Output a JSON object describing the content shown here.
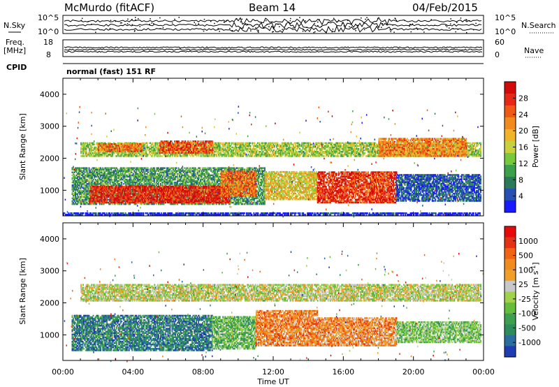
{
  "header": {
    "station": "McMurdo (fitACF)",
    "beam": "Beam 14",
    "date": "04/Feb/2015"
  },
  "top_panels": {
    "nsky_label": "N.Sky",
    "nsearch_label": "N.Search",
    "nsky_ticks": [
      "10^5",
      "10^0"
    ],
    "nsearch_ticks": [
      "10^5",
      "10^0"
    ],
    "freq_label_1": "Freq.",
    "freq_label_2": "[MHz]",
    "freq_ticks": [
      "18",
      "8"
    ],
    "nave_label": "Nave",
    "nave_ticks": [
      "60",
      "0"
    ],
    "cpid_label": "CPID",
    "cpid_text": "normal (fast) 151 RF"
  },
  "chart_data": [
    {
      "type": "heatmap",
      "name": "power",
      "ylabel": "Slant Range [km]",
      "ylim": [
        200,
        4500
      ],
      "yticks": [
        1000,
        2000,
        3000,
        4000
      ],
      "xlim": [
        0,
        24
      ],
      "colorbar_label": "Power [dB]",
      "colorbar_ticks": [
        "4",
        "8",
        "12",
        "16",
        "20",
        "24",
        "28"
      ],
      "colorbar_colors": [
        "#1a1aff",
        "#2850b4",
        "#2a7a5a",
        "#3ca04a",
        "#78c83c",
        "#c8d03c",
        "#f0b428",
        "#f08c1e",
        "#f05a14",
        "#e62814",
        "#d20a0a"
      ],
      "bands": [
        {
          "t0": 1.0,
          "t1": 23.8,
          "r0": 2050,
          "r1": 2500,
          "level": 0.45
        },
        {
          "t0": 5.5,
          "t1": 8.5,
          "r0": 2150,
          "r1": 2550,
          "level": 0.8
        },
        {
          "t0": 2.0,
          "t1": 4.5,
          "r0": 2200,
          "r1": 2450,
          "level": 0.75
        },
        {
          "t0": 18.0,
          "t1": 23.0,
          "r0": 2050,
          "r1": 2600,
          "level": 0.7
        },
        {
          "t0": 0.5,
          "t1": 11.5,
          "r0": 550,
          "r1": 1700,
          "level": 0.3
        },
        {
          "t0": 1.5,
          "t1": 9.5,
          "r0": 600,
          "r1": 1100,
          "level": 0.9
        },
        {
          "t0": 9.0,
          "t1": 11.0,
          "r0": 800,
          "r1": 1600,
          "level": 0.75
        },
        {
          "t0": 11.5,
          "t1": 14.5,
          "r0": 700,
          "r1": 1600,
          "level": 0.55
        },
        {
          "t0": 14.5,
          "t1": 19.0,
          "r0": 600,
          "r1": 1550,
          "level": 0.85
        },
        {
          "t0": 19.0,
          "t1": 23.8,
          "r0": 650,
          "r1": 1500,
          "level": 0.15
        },
        {
          "t0": 0.0,
          "t1": 23.8,
          "r0": 220,
          "r1": 300,
          "level": 0.05
        }
      ]
    },
    {
      "type": "heatmap",
      "name": "velocity",
      "ylabel": "Slant Range [km]",
      "xlabel": "Time UT",
      "ylim": [
        200,
        4500
      ],
      "yticks": [
        1000,
        2000,
        3000,
        4000
      ],
      "xlim": [
        0,
        24
      ],
      "xticks": [
        "00:00",
        "04:00",
        "08:00",
        "12:00",
        "16:00",
        "20:00",
        "00:00"
      ],
      "colorbar_label": "Velocity [m s^-1]",
      "colorbar_ticks": [
        "1000",
        "500",
        "100",
        "25",
        "-25",
        "-100",
        "-500",
        "-1000"
      ],
      "colorbar_colors": [
        "#1e3cb4",
        "#2a6ea0",
        "#2e8c5a",
        "#3ca050",
        "#64be3c",
        "#a0d24b",
        "#c8c8c8",
        "#f0a028",
        "#f08c1e",
        "#f06414",
        "#e63214",
        "#e60a0a"
      ],
      "bands": [
        {
          "t0": 1.0,
          "t1": 23.8,
          "r0": 2050,
          "r1": 2550,
          "level": 0.5
        },
        {
          "t0": 0.5,
          "t1": 8.5,
          "r0": 500,
          "r1": 1600,
          "level": 0.18
        },
        {
          "t0": 8.5,
          "t1": 11.0,
          "r0": 550,
          "r1": 1550,
          "level": 0.35
        },
        {
          "t0": 11.0,
          "t1": 14.5,
          "r0": 650,
          "r1": 1750,
          "level": 0.72
        },
        {
          "t0": 14.5,
          "t1": 19.0,
          "r0": 650,
          "r1": 1550,
          "level": 0.7
        },
        {
          "t0": 19.0,
          "t1": 23.8,
          "r0": 750,
          "r1": 1400,
          "level": 0.4
        }
      ]
    }
  ]
}
